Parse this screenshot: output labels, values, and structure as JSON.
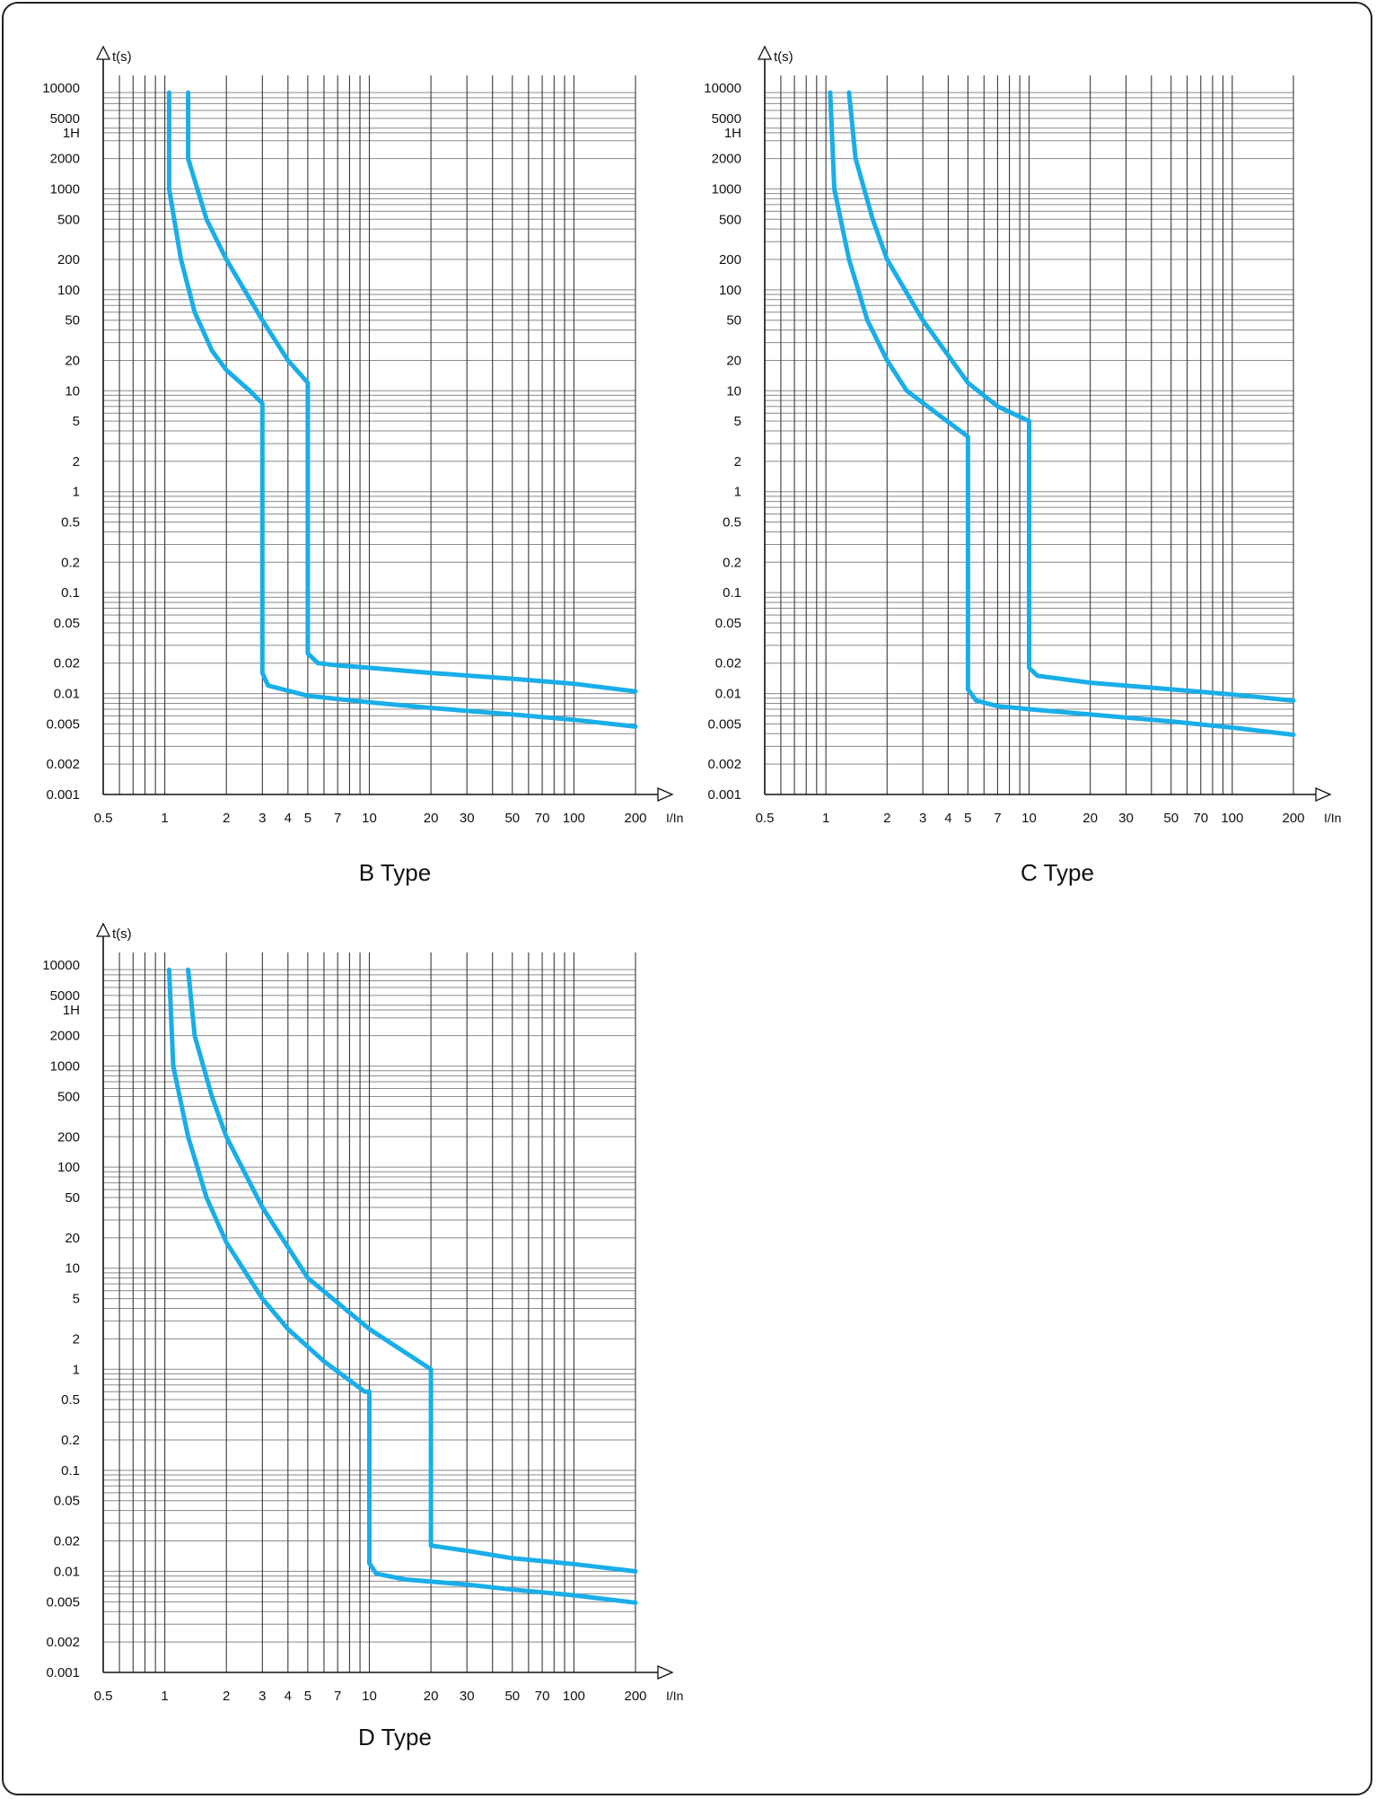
{
  "chart_data": [
    {
      "type": "line",
      "title": "B Type",
      "xlabel": "I/In",
      "ylabel": "t(s)",
      "xscale": "log",
      "yscale": "log",
      "xlim": [
        0.5,
        200
      ],
      "ylim": [
        0.001,
        10000
      ],
      "x_ticks": [
        "0.5",
        "1",
        "2",
        "3",
        "4",
        "5",
        "7",
        "10",
        "20",
        "30",
        "50",
        "70",
        "100",
        "200"
      ],
      "y_ticks": [
        "0.001",
        "0.002",
        "0.005",
        "0.01",
        "0.02",
        "0.05",
        "0.1",
        "0.2",
        "0.5",
        "1",
        "2",
        "5",
        "10",
        "20",
        "50",
        "100",
        "200",
        "500",
        "1000",
        "2000",
        "1H",
        "5000",
        "10000"
      ],
      "series": [
        {
          "values": [
            [
              1.05,
              9000
            ],
            [
              1.05,
              1000
            ],
            [
              1.2,
              200
            ],
            [
              1.4,
              60
            ],
            [
              1.7,
              25
            ],
            [
              2.0,
              16
            ],
            [
              2.6,
              10
            ],
            [
              3.0,
              7.5
            ],
            [
              3.0,
              0.016
            ],
            [
              3.2,
              0.012
            ],
            [
              5,
              0.0095
            ],
            [
              10,
              0.0082
            ],
            [
              20,
              0.0072
            ],
            [
              50,
              0.0062
            ],
            [
              100,
              0.0055
            ],
            [
              200,
              0.0047
            ]
          ]
        },
        {
          "values": [
            [
              1.3,
              9000
            ],
            [
              1.3,
              2000
            ],
            [
              1.6,
              500
            ],
            [
              2.0,
              200
            ],
            [
              3.0,
              50
            ],
            [
              4.0,
              20
            ],
            [
              5.0,
              12
            ],
            [
              5.0,
              0.025
            ],
            [
              5.6,
              0.02
            ],
            [
              7,
              0.019
            ],
            [
              10,
              0.018
            ],
            [
              20,
              0.016
            ],
            [
              50,
              0.014
            ],
            [
              100,
              0.0125
            ],
            [
              200,
              0.0105
            ]
          ]
        }
      ]
    },
    {
      "type": "line",
      "title": "C Type",
      "xlabel": "I/In",
      "ylabel": "t(s)",
      "xscale": "log",
      "yscale": "log",
      "xlim": [
        0.5,
        200
      ],
      "ylim": [
        0.001,
        10000
      ],
      "x_ticks": [
        "0.5",
        "1",
        "2",
        "3",
        "4",
        "5",
        "7",
        "10",
        "20",
        "30",
        "50",
        "70",
        "100",
        "200"
      ],
      "y_ticks": [
        "0.001",
        "0.002",
        "0.005",
        "0.01",
        "0.02",
        "0.05",
        "0.1",
        "0.2",
        "0.5",
        "1",
        "2",
        "5",
        "10",
        "20",
        "50",
        "100",
        "200",
        "500",
        "1000",
        "2000",
        "1H",
        "5000",
        "10000"
      ],
      "series": [
        {
          "values": [
            [
              1.05,
              9000
            ],
            [
              1.1,
              1000
            ],
            [
              1.3,
              200
            ],
            [
              1.6,
              50
            ],
            [
              2.0,
              20
            ],
            [
              2.5,
              10
            ],
            [
              3.5,
              6
            ],
            [
              5.0,
              3.5
            ],
            [
              5.0,
              0.011
            ],
            [
              5.5,
              0.0085
            ],
            [
              7,
              0.0075
            ],
            [
              10,
              0.007
            ],
            [
              20,
              0.0062
            ],
            [
              50,
              0.0053
            ],
            [
              100,
              0.0046
            ],
            [
              200,
              0.0039
            ]
          ]
        },
        {
          "values": [
            [
              1.3,
              9000
            ],
            [
              1.4,
              2000
            ],
            [
              1.7,
              500
            ],
            [
              2.0,
              200
            ],
            [
              3.0,
              50
            ],
            [
              5.0,
              12
            ],
            [
              7.0,
              7
            ],
            [
              10.0,
              5.0
            ],
            [
              10.0,
              0.018
            ],
            [
              11,
              0.015
            ],
            [
              20,
              0.0128
            ],
            [
              50,
              0.011
            ],
            [
              100,
              0.0098
            ],
            [
              200,
              0.0085
            ]
          ]
        }
      ]
    },
    {
      "type": "line",
      "title": "D Type",
      "xlabel": "I/In",
      "ylabel": "t(s)",
      "xscale": "log",
      "yscale": "log",
      "xlim": [
        0.5,
        200
      ],
      "ylim": [
        0.001,
        10000
      ],
      "x_ticks": [
        "0.5",
        "1",
        "2",
        "3",
        "4",
        "5",
        "7",
        "10",
        "20",
        "30",
        "50",
        "70",
        "100",
        "200"
      ],
      "y_ticks": [
        "0.001",
        "0.002",
        "0.005",
        "0.01",
        "0.02",
        "0.05",
        "0.1",
        "0.2",
        "0.5",
        "1",
        "2",
        "5",
        "10",
        "20",
        "50",
        "100",
        "200",
        "500",
        "1000",
        "2000",
        "1H",
        "5000",
        "10000"
      ],
      "series": [
        {
          "values": [
            [
              1.05,
              9000
            ],
            [
              1.1,
              1000
            ],
            [
              1.3,
              200
            ],
            [
              1.6,
              50
            ],
            [
              2.0,
              18
            ],
            [
              3.0,
              5
            ],
            [
              4.0,
              2.5
            ],
            [
              6.0,
              1.2
            ],
            [
              9.5,
              0.6
            ],
            [
              10.0,
              0.6
            ],
            [
              10.0,
              0.012
            ],
            [
              10.8,
              0.0095
            ],
            [
              15,
              0.0083
            ],
            [
              30,
              0.0074
            ],
            [
              50,
              0.0066
            ],
            [
              100,
              0.0058
            ],
            [
              200,
              0.0049
            ]
          ]
        },
        {
          "values": [
            [
              1.3,
              9000
            ],
            [
              1.4,
              2000
            ],
            [
              1.7,
              500
            ],
            [
              2.0,
              200
            ],
            [
              3.0,
              40
            ],
            [
              5.0,
              8
            ],
            [
              10.0,
              2.5
            ],
            [
              20.0,
              1.0
            ],
            [
              20.0,
              0.018
            ],
            [
              30,
              0.016
            ],
            [
              50,
              0.0135
            ],
            [
              100,
              0.0118
            ],
            [
              200,
              0.01
            ]
          ]
        }
      ]
    }
  ],
  "style": {
    "curve_color": "#19aee8",
    "grid_color": "#3a3a3a",
    "hgrid_color": "#8a8a8a"
  }
}
